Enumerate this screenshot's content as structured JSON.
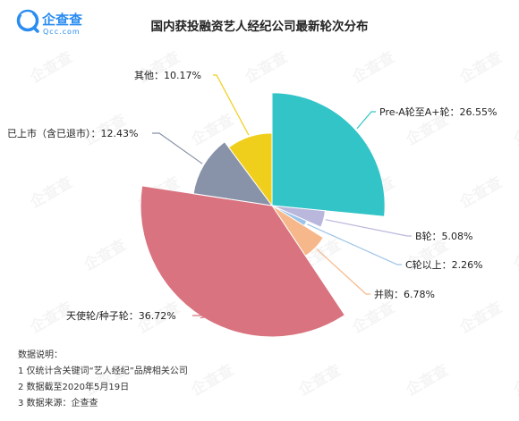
{
  "brand": {
    "name": "企查查",
    "url": "Qcc.com",
    "accent": "#2a8cf0"
  },
  "watermark_text": "企查查",
  "chart_data": {
    "type": "pie",
    "title": "国内获投融资艺人经纪公司最新轮次分布",
    "subtype": "rose (nightingale) pie — slice angle and radius both proportional to share",
    "slices": [
      {
        "name": "Pre-A轮至A+轮",
        "value": 26.55,
        "label": "Pre-A轮至A+轮：26.55%",
        "color": "#33c4c8"
      },
      {
        "name": "B轮",
        "value": 5.08,
        "label": "B轮：5.08%",
        "color": "#b9b8dc"
      },
      {
        "name": "C轮以上",
        "value": 2.26,
        "label": "C轮以上：2.26%",
        "color": "#9cc3e8"
      },
      {
        "name": "并购",
        "value": 6.78,
        "label": "并购：6.78%",
        "color": "#f6b88a"
      },
      {
        "name": "天使轮/种子轮",
        "value": 36.72,
        "label": "天使轮/种子轮：36.72%",
        "color": "#d9737f"
      },
      {
        "name": "已上市（含已退市）",
        "value": 12.43,
        "label": "已上市（含已退市）：12.43%",
        "color": "#8892a8"
      },
      {
        "name": "其他",
        "value": 10.17,
        "label": "其他：10.17%",
        "color": "#f0cf1c"
      }
    ]
  },
  "notes": {
    "heading": "数据说明：",
    "lines": [
      "1 仅统计含关键词“艺人经纪”品牌相关公司",
      "2 数据截至2020年5月19日",
      "3 数据来源：企查查"
    ]
  }
}
